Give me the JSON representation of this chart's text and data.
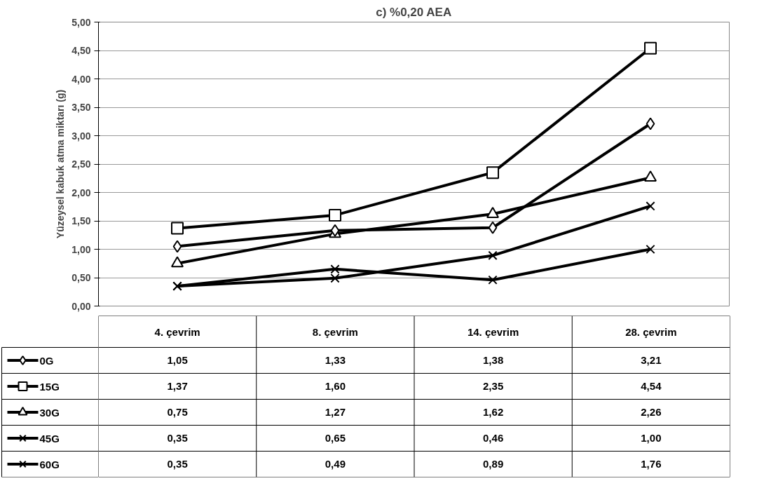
{
  "chart_data": {
    "type": "line",
    "title": "c) %0,20 AEA",
    "ylabel": "Yüzeysel kabuk atma miktarı (g)",
    "categories": [
      "4. çevrim",
      "8. çevrim",
      "14. çevrim",
      "28. çevrim"
    ],
    "ylim": [
      0,
      5
    ],
    "yticks": [
      {
        "value": 0,
        "label": "0,00"
      },
      {
        "value": 0.5,
        "label": "0,50"
      },
      {
        "value": 1,
        "label": "1,00"
      },
      {
        "value": 1.5,
        "label": "1,50"
      },
      {
        "value": 2,
        "label": "2,00"
      },
      {
        "value": 2.5,
        "label": "2,50"
      },
      {
        "value": 3,
        "label": "3,00"
      },
      {
        "value": 3.5,
        "label": "3,50"
      },
      {
        "value": 4,
        "label": "4,00"
      },
      {
        "value": 4.5,
        "label": "4,50"
      },
      {
        "value": 5,
        "label": "5,00"
      }
    ],
    "grid": "y",
    "legend": "bottom",
    "line_style": "solid",
    "series": [
      {
        "name": "0G",
        "color": "#000000",
        "marker": "diamond",
        "values": [
          1.05,
          1.33,
          1.38,
          3.21
        ],
        "value_labels": [
          "1,05",
          "1,33",
          "1,38",
          "3,21"
        ]
      },
      {
        "name": "15G",
        "color": "#000000",
        "marker": "square",
        "values": [
          1.37,
          1.6,
          2.35,
          4.54
        ],
        "value_labels": [
          "1,37",
          "1,60",
          "2,35",
          "4,54"
        ]
      },
      {
        "name": "30G",
        "color": "#000000",
        "marker": "triangle",
        "values": [
          0.75,
          1.27,
          1.62,
          2.26
        ],
        "value_labels": [
          "0,75",
          "1,27",
          "1,62",
          "2,26"
        ]
      },
      {
        "name": "45G",
        "color": "#000000",
        "marker": "cross",
        "values": [
          0.35,
          0.65,
          0.46,
          1.0
        ],
        "value_labels": [
          "0,35",
          "0,65",
          "0,46",
          "1,00"
        ]
      },
      {
        "name": "60G",
        "color": "#000000",
        "marker": "cross",
        "values": [
          0.35,
          0.49,
          0.89,
          1.76
        ],
        "value_labels": [
          "0,35",
          "0,49",
          "0,89",
          "1,76"
        ]
      }
    ]
  }
}
